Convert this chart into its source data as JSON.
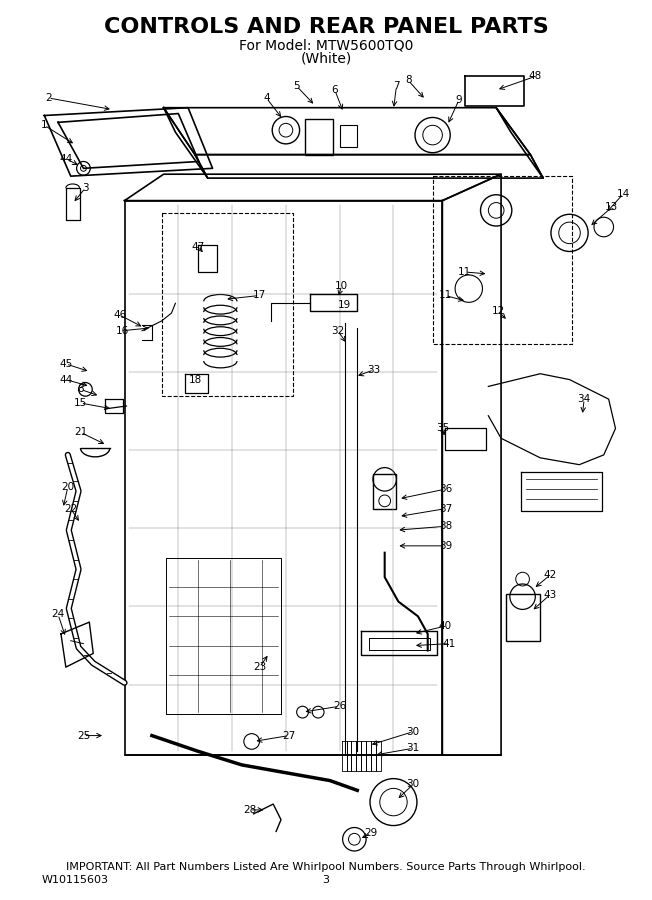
{
  "title_line1": "CONTROLS AND REAR PANEL PARTS",
  "title_line2": "For Model: MTW5600TQ0",
  "title_line3": "(White)",
  "footer_left": "W10115603",
  "footer_center": "3",
  "footer_note": "IMPORTANT: All Part Numbers Listed Are Whirlpool Numbers. Source Parts Through Whirlpool.",
  "bg_color": "#ffffff",
  "title_fontsize": 16,
  "subtitle_fontsize": 10,
  "footer_fontsize": 8,
  "fig_width": 6.52,
  "fig_height": 9.0,
  "dpi": 100
}
